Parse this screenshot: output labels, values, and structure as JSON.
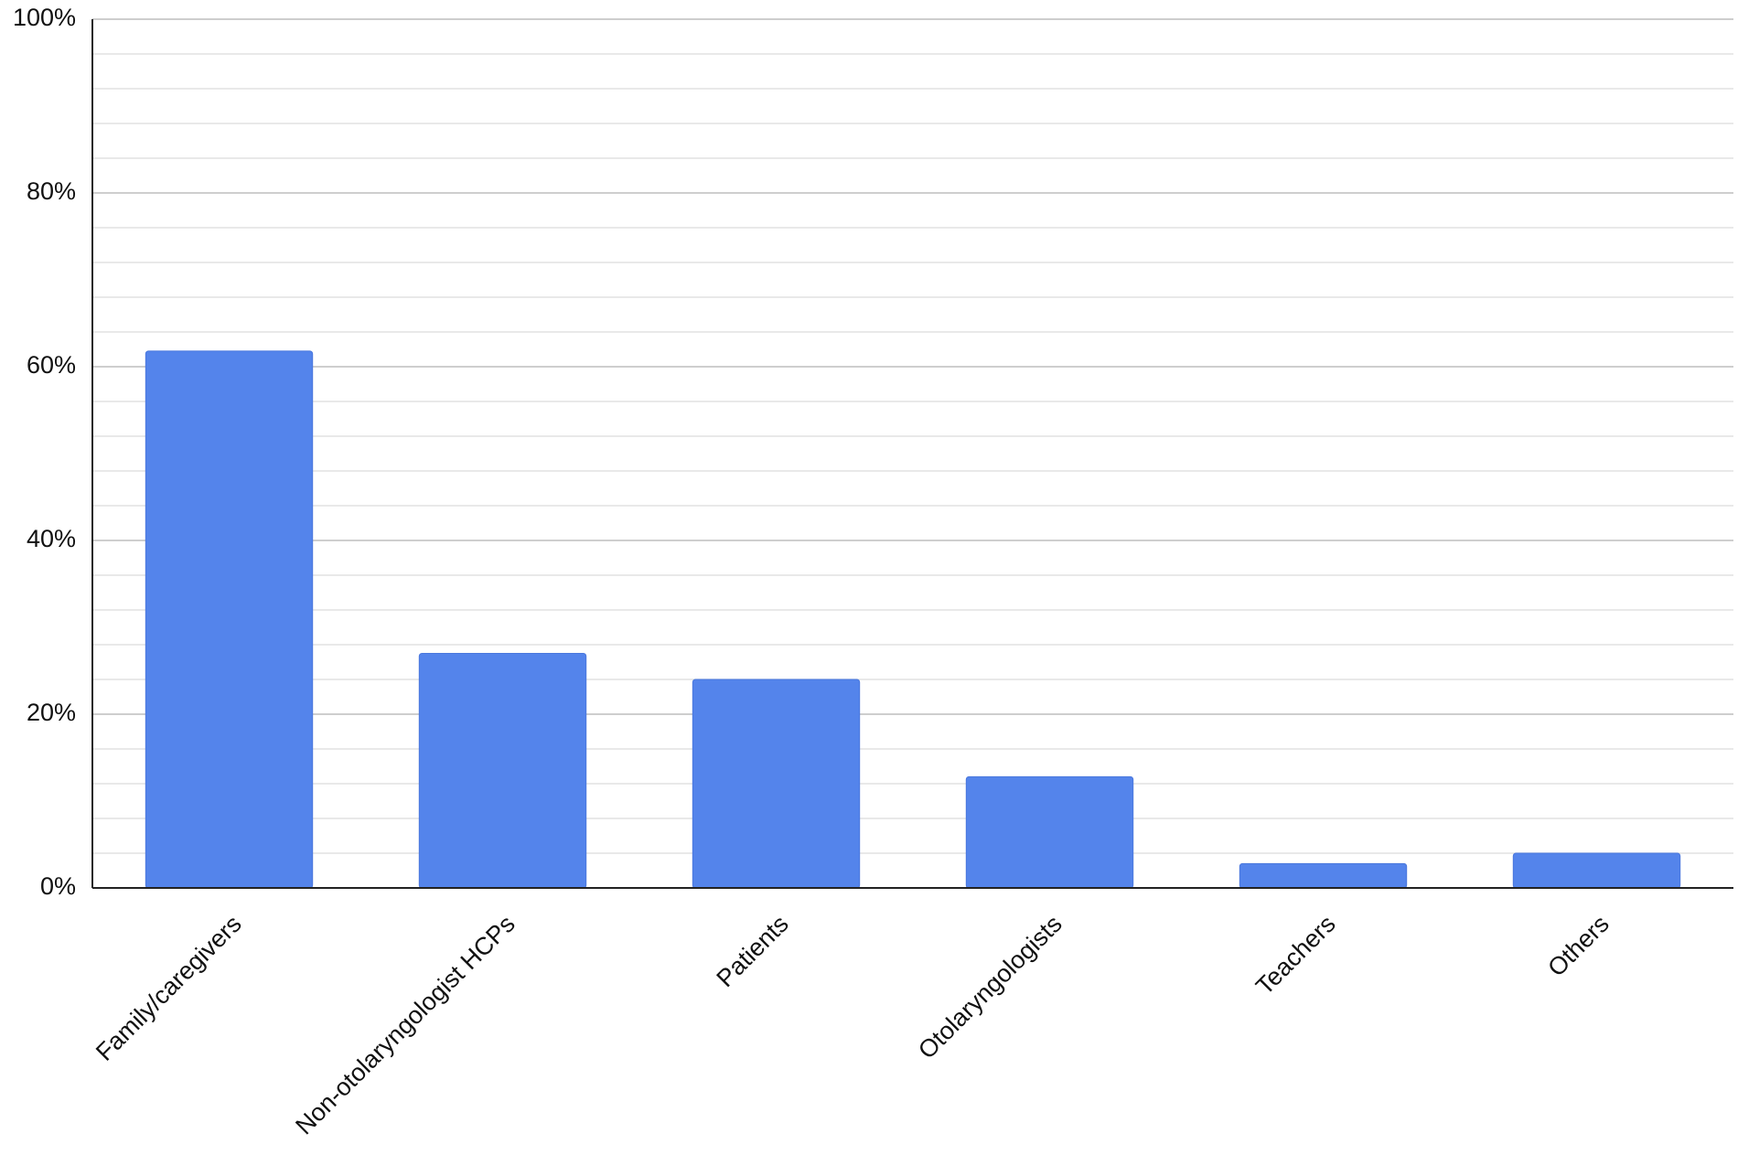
{
  "chart_data": {
    "type": "bar",
    "categories": [
      "Family/caregivers",
      "Non-otolaryngologist HCPs",
      "Patients",
      "Otolaryngologists",
      "Teachers",
      "Others"
    ],
    "values": [
      61.8,
      27,
      24,
      12.8,
      2.8,
      4
    ],
    "color": "#5484eb",
    "ylim": [
      0,
      100
    ],
    "yticks": [
      {
        "value": 0,
        "label": "0%"
      },
      {
        "value": 20,
        "label": "20%"
      },
      {
        "value": 40,
        "label": "40%"
      },
      {
        "value": 60,
        "label": "60%"
      },
      {
        "value": 80,
        "label": "80%"
      },
      {
        "value": 100,
        "label": "100%"
      }
    ],
    "minor_yticks": [
      4,
      8,
      12,
      16,
      24,
      28,
      32,
      36,
      44,
      48,
      52,
      56,
      64,
      68,
      72,
      76,
      84,
      88,
      92,
      96
    ],
    "grid": true
  }
}
